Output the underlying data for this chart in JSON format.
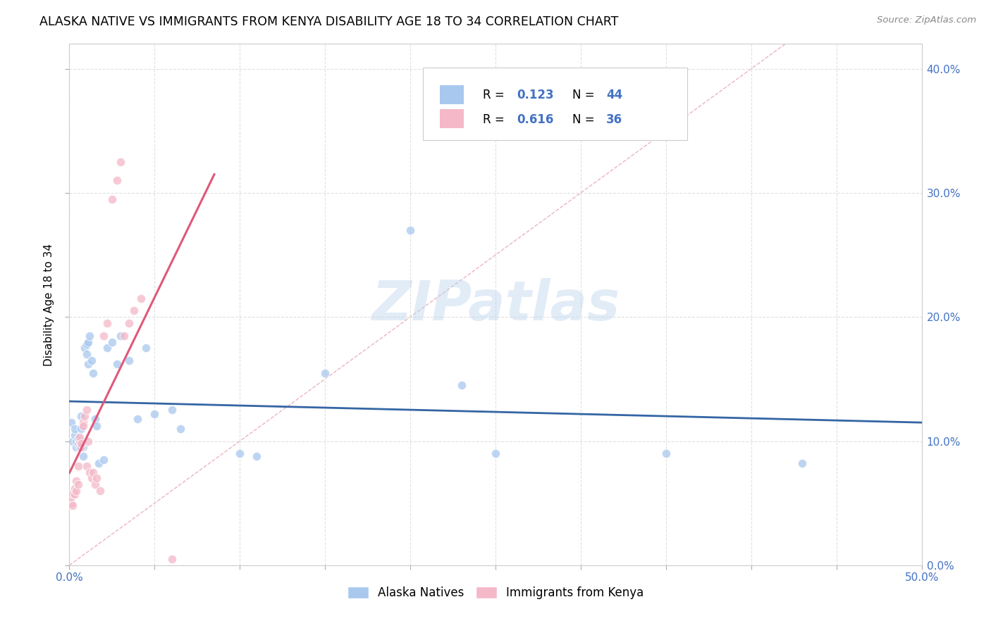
{
  "title": "ALASKA NATIVE VS IMMIGRANTS FROM KENYA DISABILITY AGE 18 TO 34 CORRELATION CHART",
  "source": "Source: ZipAtlas.com",
  "ylabel": "Disability Age 18 to 34",
  "xlim": [
    0.0,
    0.5
  ],
  "ylim": [
    0.0,
    0.42
  ],
  "xticks": [
    0.0,
    0.05,
    0.1,
    0.15,
    0.2,
    0.25,
    0.3,
    0.35,
    0.4,
    0.45,
    0.5
  ],
  "yticks": [
    0.0,
    0.1,
    0.2,
    0.3,
    0.4
  ],
  "xticklabels_show": [
    "0.0%",
    "",
    "",
    "",
    "",
    "",
    "",
    "",
    "",
    "",
    "50.0%"
  ],
  "yticklabels_right": [
    "0.0%",
    "10.0%",
    "20.0%",
    "30.0%",
    "40.0%"
  ],
  "color_blue": "#A8C8EE",
  "color_pink": "#F4B8C8",
  "color_blue_dark": "#4472C4",
  "color_line_blue": "#3465A4",
  "color_line_pink": "#E05878",
  "color_diag": "#E8A0B0",
  "color_grid": "#DDDDDD",
  "watermark": "ZIPatlas",
  "legend_label1": "Alaska Natives",
  "legend_label2": "Immigrants from Kenya",
  "alaska_x": [
    0.001,
    0.002,
    0.003,
    0.003,
    0.004,
    0.004,
    0.005,
    0.005,
    0.006,
    0.006,
    0.007,
    0.007,
    0.008,
    0.008,
    0.009,
    0.01,
    0.01,
    0.011,
    0.011,
    0.012,
    0.013,
    0.014,
    0.015,
    0.016,
    0.017,
    0.02,
    0.022,
    0.025,
    0.028,
    0.03,
    0.035,
    0.04,
    0.045,
    0.05,
    0.06,
    0.065,
    0.1,
    0.11,
    0.15,
    0.2,
    0.23,
    0.25,
    0.35,
    0.43
  ],
  "alaska_y": [
    0.115,
    0.1,
    0.105,
    0.11,
    0.095,
    0.1,
    0.098,
    0.102,
    0.1,
    0.095,
    0.12,
    0.11,
    0.088,
    0.095,
    0.175,
    0.17,
    0.178,
    0.18,
    0.162,
    0.185,
    0.165,
    0.155,
    0.118,
    0.112,
    0.082,
    0.085,
    0.175,
    0.18,
    0.162,
    0.185,
    0.165,
    0.118,
    0.175,
    0.122,
    0.125,
    0.11,
    0.09,
    0.088,
    0.155,
    0.27,
    0.145,
    0.09,
    0.09,
    0.082
  ],
  "kenya_x": [
    0.001,
    0.001,
    0.002,
    0.002,
    0.003,
    0.003,
    0.004,
    0.004,
    0.005,
    0.005,
    0.006,
    0.006,
    0.007,
    0.007,
    0.008,
    0.008,
    0.009,
    0.01,
    0.01,
    0.011,
    0.012,
    0.013,
    0.014,
    0.015,
    0.016,
    0.018,
    0.02,
    0.022,
    0.025,
    0.028,
    0.03,
    0.032,
    0.035,
    0.038,
    0.042,
    0.06
  ],
  "kenya_y": [
    0.05,
    0.055,
    0.058,
    0.048,
    0.062,
    0.057,
    0.068,
    0.06,
    0.065,
    0.08,
    0.1,
    0.103,
    0.095,
    0.098,
    0.115,
    0.112,
    0.12,
    0.125,
    0.08,
    0.1,
    0.075,
    0.07,
    0.075,
    0.065,
    0.07,
    0.06,
    0.185,
    0.195,
    0.295,
    0.31,
    0.325,
    0.185,
    0.195,
    0.205,
    0.215,
    0.005
  ]
}
